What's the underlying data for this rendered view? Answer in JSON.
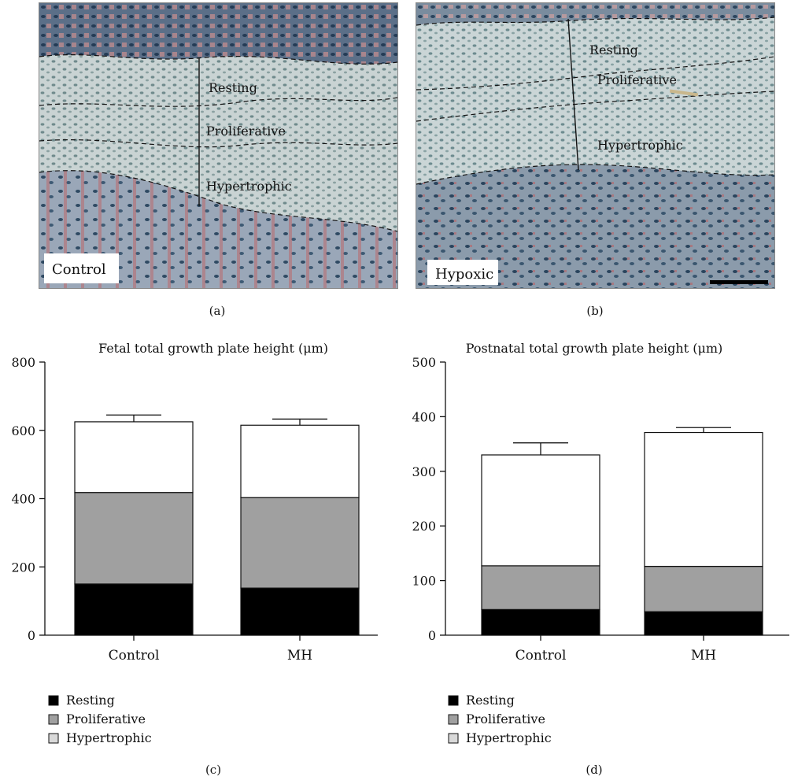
{
  "panel_a": {
    "label": "(a)",
    "badge": "Control",
    "zones": [
      "Resting",
      "Proliferative",
      "Hypertrophic"
    ]
  },
  "panel_b": {
    "label": "(b)",
    "badge": "Hypoxic",
    "zones": [
      "Resting",
      "Proliferative",
      "Hypertrophic"
    ]
  },
  "colors": {
    "resting": "#000000",
    "proliferative": "#a0a0a0",
    "hypertrophic": "#ffffff",
    "legend_hypertrophic": "#d9d9d9"
  },
  "chart_data": [
    {
      "panel_label": "(c)",
      "type": "bar",
      "stacked": true,
      "title": "Fetal total growth plate height (μm)",
      "categories": [
        "Control",
        "MH"
      ],
      "series": [
        {
          "name": "Resting",
          "values": [
            150,
            138
          ]
        },
        {
          "name": "Proliferative",
          "values": [
            268,
            265
          ]
        },
        {
          "name": "Hypertrophic",
          "values": [
            207,
            212
          ]
        }
      ],
      "totals": [
        625,
        615
      ],
      "errors": [
        20,
        18
      ],
      "ylim": [
        0,
        800
      ],
      "yticks": [
        0,
        200,
        400,
        600,
        800
      ],
      "legend": [
        "Resting",
        "Proliferative",
        "Hypertrophic"
      ],
      "legend_position": "bottom-left"
    },
    {
      "panel_label": "(d)",
      "type": "bar",
      "stacked": true,
      "title": "Postnatal total growth plate height (μm)",
      "categories": [
        "Control",
        "MH"
      ],
      "series": [
        {
          "name": "Resting",
          "values": [
            47,
            43
          ]
        },
        {
          "name": "Proliferative",
          "values": [
            80,
            83
          ]
        },
        {
          "name": "Hypertrophic",
          "values": [
            203,
            245
          ]
        }
      ],
      "totals": [
        330,
        371
      ],
      "errors": [
        22,
        9
      ],
      "ylim": [
        0,
        500
      ],
      "yticks": [
        0,
        100,
        200,
        300,
        400,
        500
      ],
      "legend": [
        "Resting",
        "Proliferative",
        "Hypertrophic"
      ],
      "legend_position": "bottom-left"
    }
  ]
}
